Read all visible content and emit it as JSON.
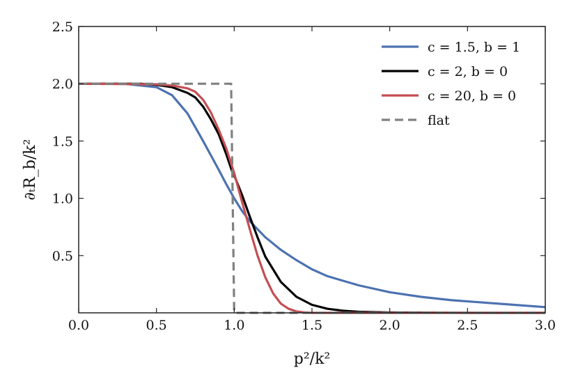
{
  "chart_data": {
    "type": "line",
    "xlabel": "p²/k²",
    "ylabel": "∂ₜR_b/k²",
    "xlim": [
      0,
      3
    ],
    "ylim": [
      0,
      2.5
    ],
    "x_ticks": [
      "0.0",
      "0.5",
      "1.0",
      "1.5",
      "2.0",
      "2.5",
      "3.0"
    ],
    "y_ticks": [
      "0.5",
      "1.0",
      "1.5",
      "2.0",
      "2.5"
    ],
    "grid": false,
    "legend_position": "top-right",
    "series": [
      {
        "name": "c = 1.5, b = 1",
        "color": "#4c72b0",
        "style": "solid",
        "x": [
          0,
          0.3,
          0.5,
          0.6,
          0.7,
          0.8,
          0.9,
          0.95,
          1.0,
          1.05,
          1.1,
          1.2,
          1.3,
          1.4,
          1.5,
          1.6,
          1.7,
          1.8,
          2.0,
          2.2,
          2.4,
          2.6,
          2.8,
          3.0
        ],
        "y": [
          2.0,
          1.999,
          1.97,
          1.9,
          1.74,
          1.5,
          1.25,
          1.12,
          1.0,
          0.89,
          0.8,
          0.66,
          0.55,
          0.46,
          0.38,
          0.32,
          0.28,
          0.24,
          0.18,
          0.14,
          0.11,
          0.09,
          0.07,
          0.05
        ]
      },
      {
        "name": "c = 2, b = 0",
        "color": "#000000",
        "style": "solid",
        "x": [
          0,
          0.4,
          0.5,
          0.6,
          0.7,
          0.75,
          0.8,
          0.85,
          0.9,
          0.95,
          0.98,
          0.99,
          1.0,
          1.05,
          1.1,
          1.15,
          1.2,
          1.3,
          1.4,
          1.5,
          1.6,
          1.7,
          1.8,
          2.0,
          2.5,
          3.0
        ],
        "y": [
          2.0,
          2.0,
          1.99,
          1.97,
          1.92,
          1.88,
          1.8,
          1.69,
          1.56,
          1.38,
          1.26,
          1.22,
          1.2,
          1.03,
          0.84,
          0.66,
          0.49,
          0.27,
          0.14,
          0.07,
          0.035,
          0.018,
          0.009,
          0.003,
          0.0,
          0.0
        ]
      },
      {
        "name": "c = 20, b = 0",
        "color": "#c44e52",
        "style": "solid",
        "x": [
          0,
          0.5,
          0.6,
          0.7,
          0.75,
          0.8,
          0.85,
          0.9,
          0.95,
          1.0,
          1.05,
          1.1,
          1.15,
          1.2,
          1.25,
          1.3,
          1.35,
          1.4,
          1.45,
          1.5,
          3.0
        ],
        "y": [
          2.0,
          1.995,
          1.985,
          1.96,
          1.93,
          1.86,
          1.75,
          1.6,
          1.43,
          1.22,
          0.97,
          0.73,
          0.5,
          0.31,
          0.17,
          0.08,
          0.035,
          0.012,
          0.004,
          0.0,
          0.0
        ]
      },
      {
        "name": "flat",
        "color": "#808080",
        "style": "dashed",
        "x": [
          0,
          0.98,
          1.0,
          3.0
        ],
        "y": [
          2.0,
          2.0,
          0.0,
          0.0
        ]
      }
    ]
  }
}
